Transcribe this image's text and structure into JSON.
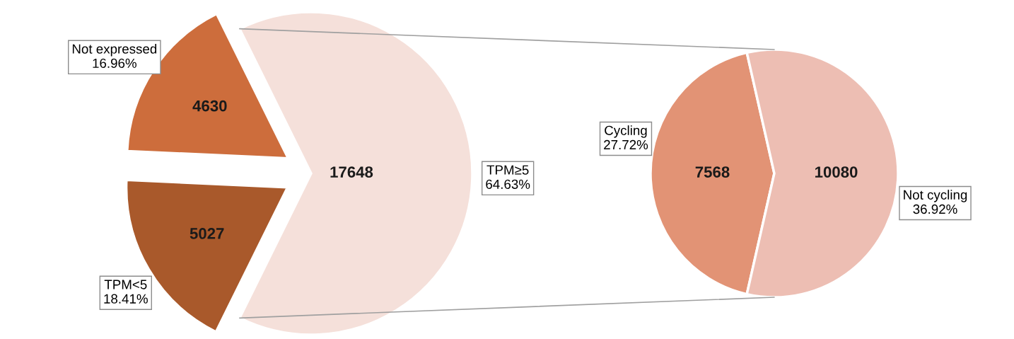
{
  "chart_data": [
    {
      "type": "pie",
      "categories": [
        "Not expressed\n16.96%",
        "TPM<5\n18.41%",
        "TPM≥5\n64.63%"
      ],
      "values": [
        4630,
        5027,
        17648
      ],
      "colors": [
        "#cd6d3c",
        "#a9592b",
        "#f5e0da"
      ],
      "value_labels": [
        "4630",
        "5027",
        "17648"
      ]
    },
    {
      "type": "pie",
      "categories": [
        "Cycling\n27.72%",
        "Not cycling\n36.92%"
      ],
      "values": [
        7568,
        10080
      ],
      "colors": [
        "#e29375",
        "#edbeb3"
      ],
      "value_labels": [
        "7568",
        "10080"
      ]
    }
  ]
}
